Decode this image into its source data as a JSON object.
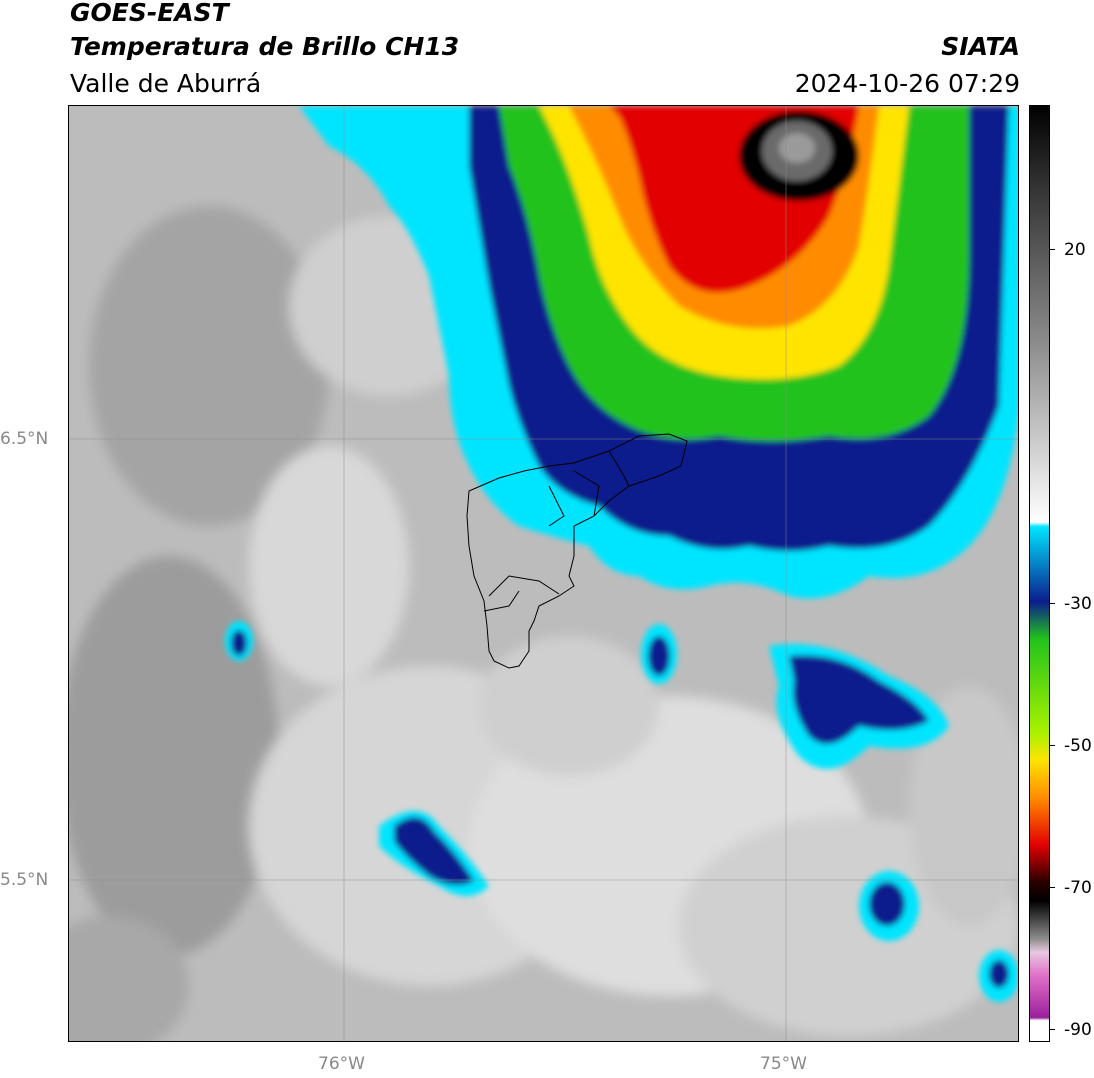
{
  "header": {
    "satellite": "GOES-EAST",
    "product": "Temperatura de Brillo CH13",
    "region": "Valle de Aburrá",
    "brand": "SIATA",
    "datetime": "2024-10-26 07:29"
  },
  "map": {
    "lat_labels": [
      "6.5°N",
      "5.5°N"
    ],
    "lon_labels": [
      "76°W",
      "75°W"
    ]
  },
  "colorbar": {
    "tick_labels": [
      "20",
      "-30",
      "-50",
      "-70",
      "-90"
    ],
    "colors": {
      "white": "#ffffff",
      "magenta": "#9a1f9c",
      "black": "#000000",
      "red": "#e30000",
      "orange": "#ff8c00",
      "yellow": "#ffe400",
      "green": "#22c21c",
      "navy": "#0b1e8c",
      "cyan": "#00e5ff",
      "light_gray": "#f0f0f0",
      "dark_gray": "#3a3a3a"
    }
  }
}
